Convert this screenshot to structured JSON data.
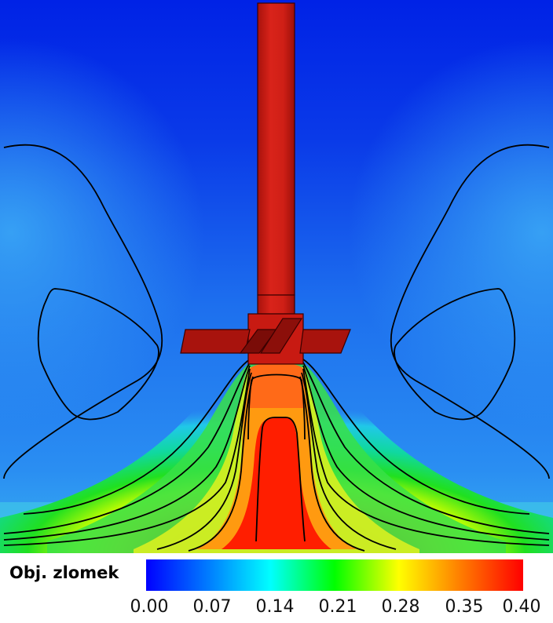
{
  "colorbar": {
    "title": "Obj. zlomek",
    "ticks": [
      "0.00",
      "0.07",
      "0.14",
      "0.21",
      "0.28",
      "0.35",
      "0.40"
    ],
    "range": [
      0.0,
      0.4
    ],
    "colors": [
      "#0000ff",
      "#0080ff",
      "#00ffff",
      "#00ff00",
      "#ffff00",
      "#ff8000",
      "#ff0000"
    ]
  },
  "scene": {
    "background_color": "#0a2fe0",
    "shaft_color": "#d31a12",
    "impeller_color": "#b8140e",
    "contour_color": "#000000"
  }
}
